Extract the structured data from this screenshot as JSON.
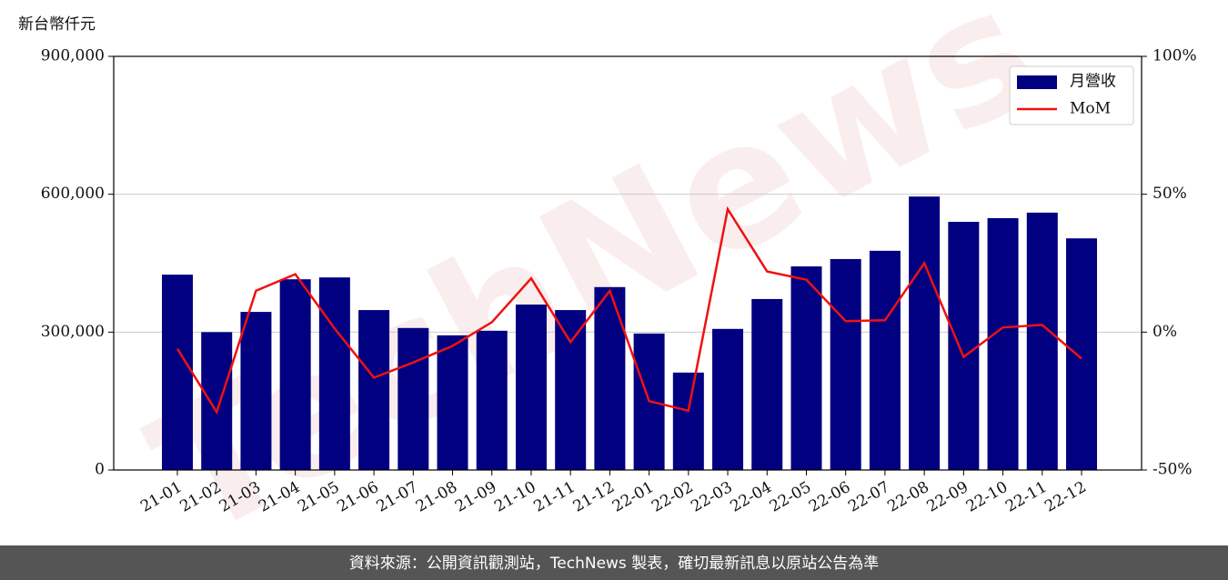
{
  "chart_data": {
    "type": "bar",
    "y_label": "新台幣仟元",
    "watermark": "TechNews",
    "footer": "資料來源：公開資訊觀測站，TechNews 製表，確切最新訊息以原站公告為準",
    "categories": [
      "21-01",
      "21-02",
      "21-03",
      "21-04",
      "21-05",
      "21-06",
      "21-07",
      "21-08",
      "21-09",
      "21-10",
      "21-11",
      "21-12",
      "22-01",
      "22-02",
      "22-03",
      "22-04",
      "22-05",
      "22-06",
      "22-07",
      "22-08",
      "22-09",
      "22-10",
      "22-11",
      "22-12"
    ],
    "series": [
      {
        "name": "月營收",
        "type": "bar",
        "color": "#000080",
        "values": [
          425000,
          300000,
          344000,
          415000,
          419000,
          348000,
          309000,
          293000,
          303000,
          360000,
          348000,
          398000,
          297000,
          212000,
          307000,
          372000,
          443000,
          459000,
          477000,
          595000,
          540000,
          548000,
          560000,
          504000
        ]
      },
      {
        "name": "MoM",
        "type": "line",
        "axis": "y2",
        "color": "#ee1111",
        "values": [
          -6,
          -29,
          15,
          21,
          1.3,
          -16.5,
          -11,
          -5,
          3.6,
          19.5,
          -3.6,
          15,
          -25,
          -28.5,
          44.6,
          22,
          19,
          4,
          4.3,
          25,
          -9,
          1.7,
          2.6,
          -9.6
        ]
      }
    ],
    "ylim": [
      0,
      900000
    ],
    "yticks": [
      0,
      {
        "value": 300000,
        "label": "300,000"
      },
      {
        "value": 600000,
        "label": "600,000"
      },
      {
        "value": 900000,
        "label": "900,000"
      }
    ],
    "y2lim": [
      -50,
      100
    ],
    "y2ticks": [
      {
        "value": -50,
        "label": "-50%"
      },
      {
        "value": 0,
        "label": "0%"
      },
      {
        "value": 50,
        "label": "50%"
      },
      {
        "value": 100,
        "label": "100%"
      }
    ],
    "grid": true,
    "legend": "upper right"
  }
}
